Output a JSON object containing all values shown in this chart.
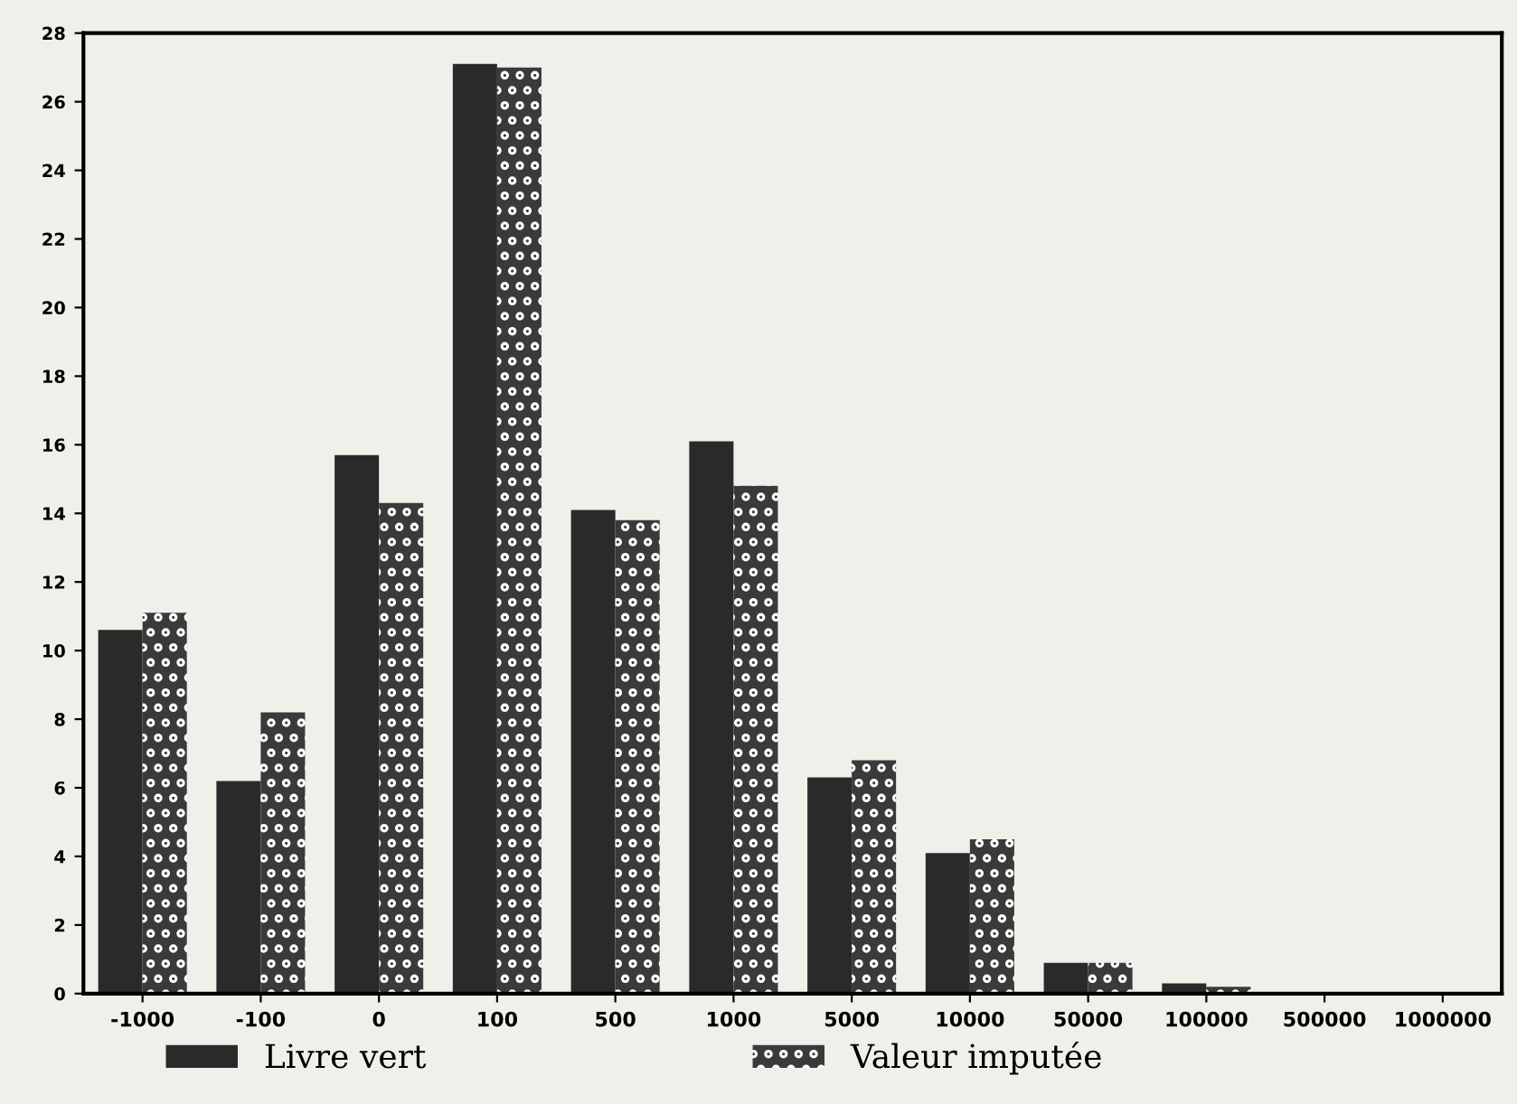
{
  "chart_data": {
    "type": "bar",
    "categories": [
      "-1000",
      "-100",
      "0",
      "100",
      "500",
      "1000",
      "5000",
      "10000",
      "50000",
      "100000",
      "500000",
      "1000000"
    ],
    "series": [
      {
        "name": "Livre vert",
        "color": "#2a2a2a",
        "values": [
          10.6,
          6.2,
          15.7,
          27.1,
          14.1,
          16.1,
          6.3,
          4.1,
          0.9,
          0.3,
          0,
          0
        ]
      },
      {
        "name": "Valeur imputée",
        "color": "#3a3a3a",
        "values": [
          11.1,
          8.2,
          14.3,
          27.0,
          13.8,
          14.8,
          6.8,
          4.5,
          0.9,
          0.2,
          0,
          0
        ]
      }
    ],
    "ylim": [
      0,
      28
    ],
    "yticks": [
      0,
      2,
      4,
      6,
      8,
      10,
      12,
      14,
      16,
      18,
      20,
      22,
      24,
      26,
      28
    ],
    "grid": false,
    "legend": "bottom"
  }
}
